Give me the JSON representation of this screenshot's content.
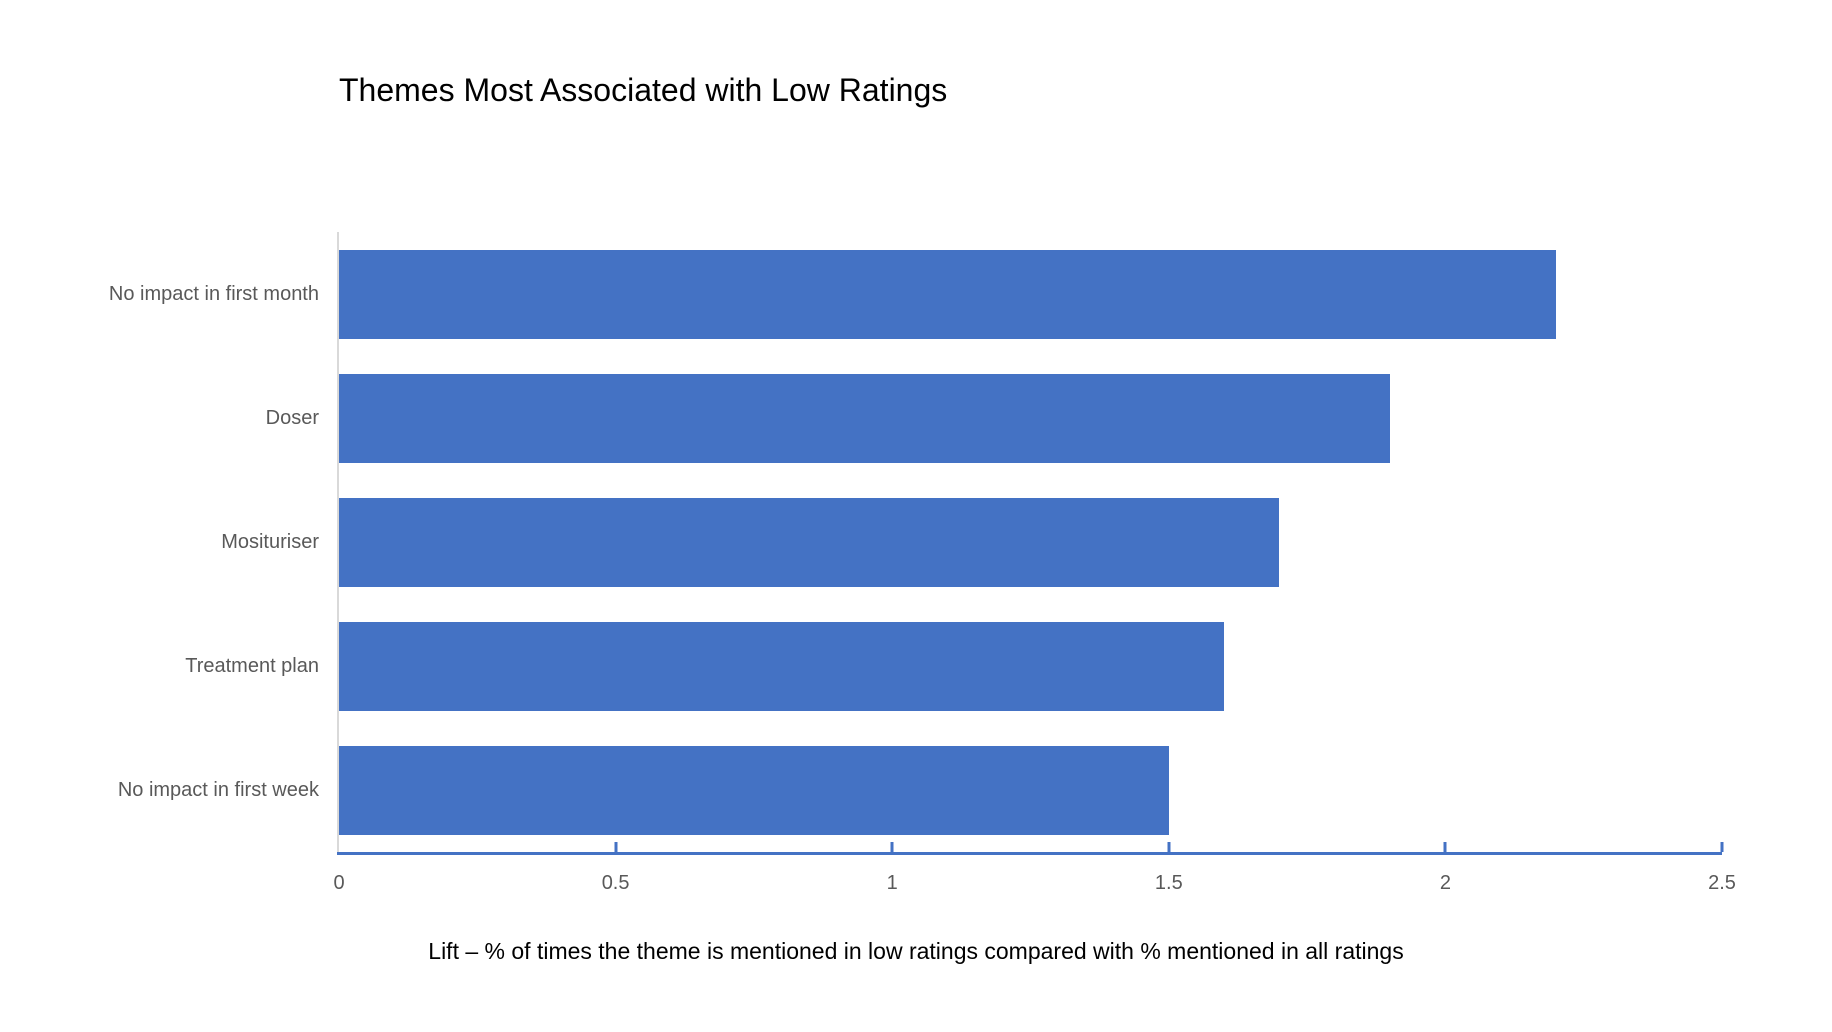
{
  "chart_data": {
    "type": "bar",
    "orientation": "horizontal",
    "title": "Themes Most Associated with Low Ratings",
    "categories": [
      "No impact in first month",
      "Doser",
      "Mosituriser",
      "Treatment plan",
      "No impact in first week"
    ],
    "values": [
      2.2,
      1.9,
      1.7,
      1.6,
      1.5
    ],
    "xlabel": "Lift – % of times the theme is mentioned in low ratings compared with % mentioned in all ratings",
    "ylabel": "",
    "xlim": [
      0,
      2.5
    ],
    "xticks": {
      "values": [
        0,
        0.5,
        1,
        1.5,
        2,
        2.5
      ],
      "labels": [
        "0",
        "0.5",
        "1",
        "1.5",
        "2",
        "2.5"
      ]
    },
    "grid": false,
    "legend": false,
    "colors": {
      "bar": "#4472c4",
      "x_axis_line": "#4472c4",
      "y_axis_line": "#d9d9d9",
      "tick_label": "#595959",
      "category_label": "#595959",
      "title": "#000000",
      "caption": "#000000"
    }
  }
}
